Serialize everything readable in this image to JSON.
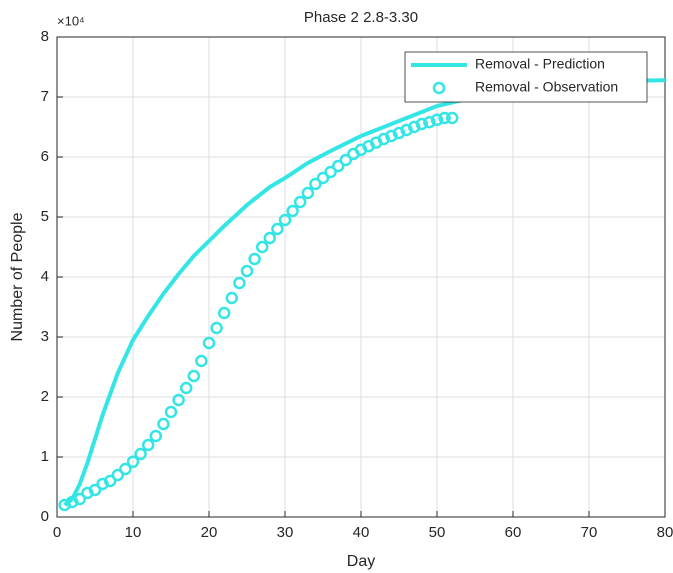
{
  "chart_data": {
    "type": "line",
    "title": "Phase 2 2.8-3.30",
    "xlabel": "Day",
    "ylabel": "Number of People",
    "y_multiplier": "×10⁴",
    "xlim": [
      0,
      80
    ],
    "ylim": [
      0,
      8
    ],
    "xticks": [
      0,
      10,
      20,
      30,
      40,
      50,
      60,
      70,
      80
    ],
    "yticks": [
      0,
      1,
      2,
      3,
      4,
      5,
      6,
      7,
      8
    ],
    "grid": true,
    "legend": "upper right",
    "series": [
      {
        "name": "Removal - Prediction",
        "color": "#33e5e5",
        "style": "line",
        "x": [
          1,
          2,
          3,
          4,
          5,
          6,
          8,
          10,
          12,
          14,
          16,
          18,
          20,
          22,
          25,
          28,
          30,
          33,
          36,
          40,
          45,
          50,
          55,
          60,
          65,
          70,
          75,
          80
        ],
        "values": [
          0.2,
          0.3,
          0.55,
          0.9,
          1.3,
          1.7,
          2.4,
          2.95,
          3.35,
          3.72,
          4.05,
          4.35,
          4.6,
          4.85,
          5.2,
          5.5,
          5.65,
          5.9,
          6.1,
          6.35,
          6.6,
          6.85,
          7.0,
          7.1,
          7.2,
          7.25,
          7.27,
          7.28
        ]
      },
      {
        "name": "Removal - Observation",
        "color": "#33e5e5",
        "style": "marker",
        "x": [
          1,
          2,
          3,
          4,
          5,
          6,
          7,
          8,
          9,
          10,
          11,
          12,
          13,
          14,
          15,
          16,
          17,
          18,
          19,
          20,
          21,
          22,
          23,
          24,
          25,
          26,
          27,
          28,
          29,
          30,
          31,
          32,
          33,
          34,
          35,
          36,
          37,
          38,
          39,
          40,
          41,
          42,
          43,
          44,
          45,
          46,
          47,
          48,
          49,
          50,
          51,
          52
        ],
        "values": [
          0.2,
          0.25,
          0.3,
          0.4,
          0.45,
          0.55,
          0.6,
          0.7,
          0.8,
          0.92,
          1.05,
          1.2,
          1.35,
          1.55,
          1.75,
          1.95,
          2.15,
          2.35,
          2.6,
          2.9,
          3.15,
          3.4,
          3.65,
          3.9,
          4.1,
          4.3,
          4.5,
          4.65,
          4.8,
          4.95,
          5.1,
          5.25,
          5.4,
          5.55,
          5.65,
          5.75,
          5.85,
          5.95,
          6.05,
          6.12,
          6.18,
          6.24,
          6.3,
          6.35,
          6.4,
          6.45,
          6.5,
          6.55,
          6.58,
          6.62,
          6.65,
          6.65
        ]
      }
    ]
  }
}
